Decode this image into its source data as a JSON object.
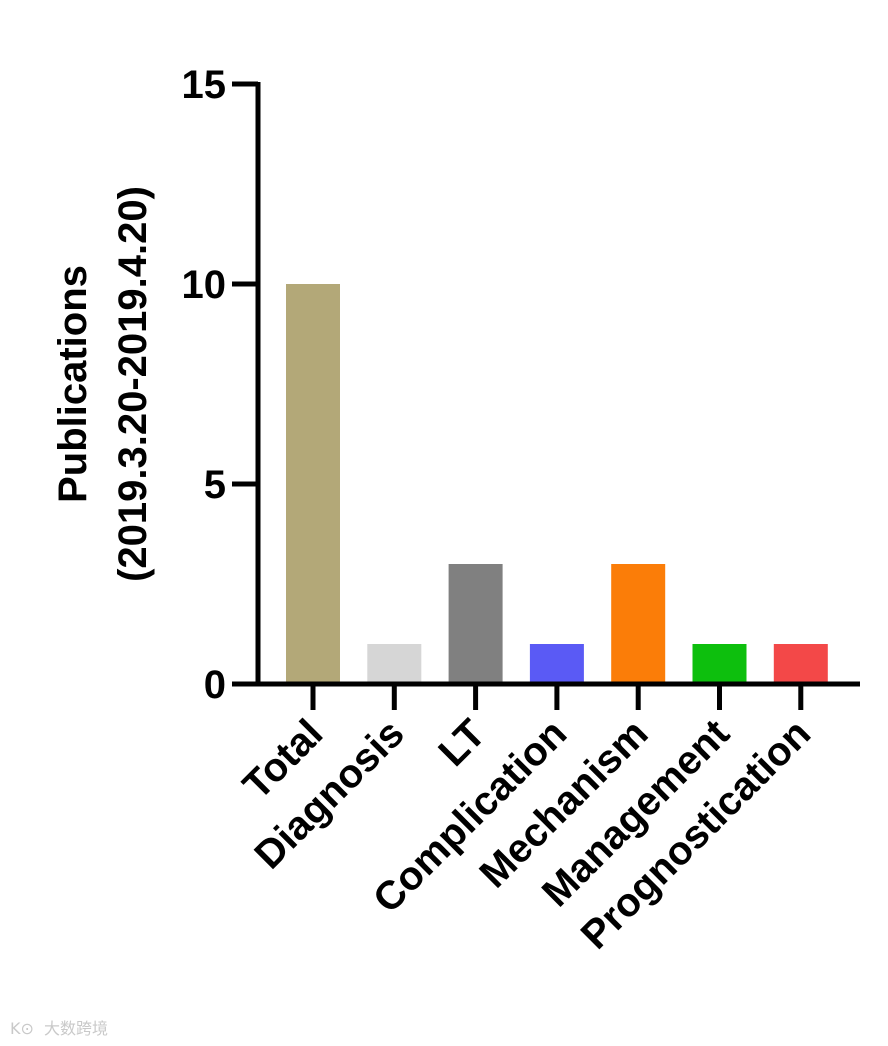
{
  "chart_data": {
    "type": "bar",
    "categories": [
      "Total",
      "Diagnosis",
      "LT",
      "Complication",
      "Mechanism",
      "Management",
      "Prognostication"
    ],
    "values": [
      10,
      1,
      3,
      1,
      3,
      1,
      1
    ],
    "colors": [
      "#b3a878",
      "#d6d6d6",
      "#808080",
      "#5a5af5",
      "#fb7d08",
      "#0dbf0d",
      "#f34848"
    ],
    "title": "",
    "xlabel": "",
    "ylabel_lines": [
      "Publications",
      "(2019.3.20-2019.4.20)"
    ],
    "ylim": [
      0,
      15
    ],
    "yticks": [
      0,
      5,
      10,
      15
    ],
    "grid": false,
    "legend": "none"
  },
  "watermark": "大数跨境"
}
